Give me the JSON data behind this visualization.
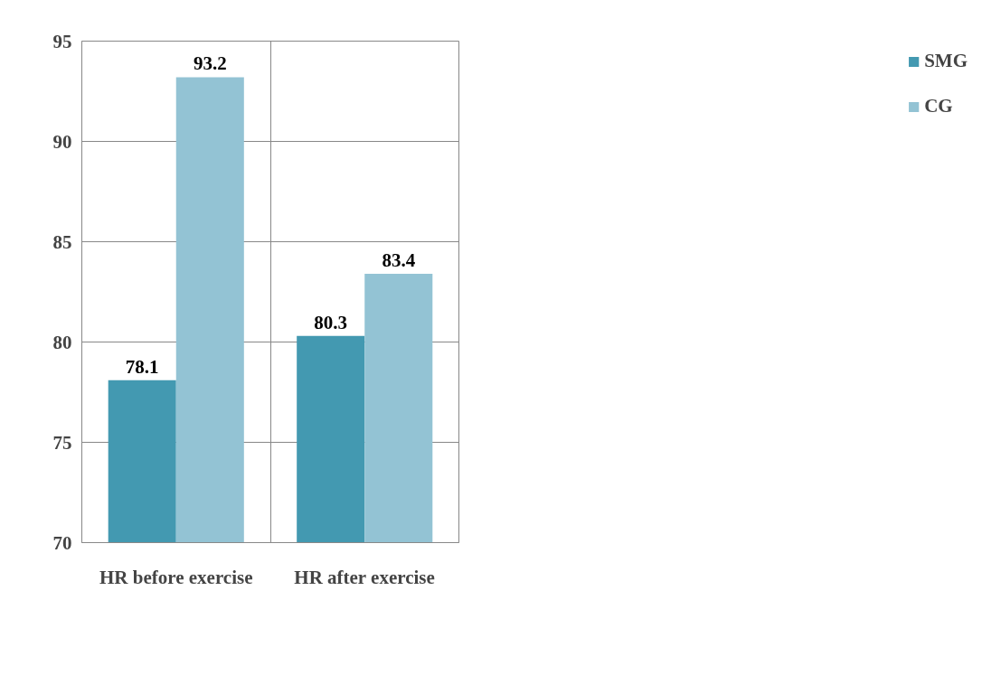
{
  "chart_data": {
    "type": "bar",
    "categories": [
      "HR before exercise",
      "HR after exercise"
    ],
    "series": [
      {
        "name": "SMG",
        "color": "#4399b1",
        "values": [
          78.1,
          80.3
        ]
      },
      {
        "name": "CG",
        "color": "#93c3d4",
        "values": [
          93.2,
          83.4
        ]
      }
    ],
    "ylim": [
      70,
      95
    ],
    "yticks": [
      70,
      75,
      80,
      85,
      90,
      95
    ],
    "grid": true,
    "legend": "right",
    "data_labels": true
  }
}
